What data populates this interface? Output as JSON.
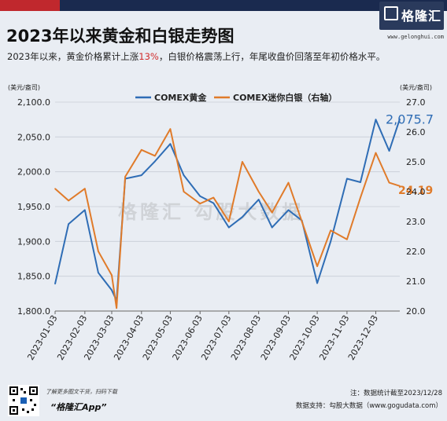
{
  "header": {
    "title": "2023年以来黄金和白银走势图",
    "subtitle_pre": "2023年以来，黄金价格累计上涨",
    "subtitle_highlight": "13%",
    "subtitle_post": "，白银价格震荡上行，年尾收盘价回落至年初价格水平。"
  },
  "brand": {
    "name": "格隆汇",
    "url": "www.gelonghui.com"
  },
  "watermark": "格隆汇  勾股大数据",
  "footer": {
    "promo_line": "了解更多图文干货，扫码下载",
    "app_name": "“格隆汇App”",
    "note": "注：数据统计截至2023/12/28",
    "source": "数据支持：勾股大数据（www.gogudata.com）"
  },
  "colors": {
    "gold": "#2f6db5",
    "silver": "#e07b2a",
    "red": "#c0282d",
    "navy": "#1a2a4f"
  },
  "chart_data": {
    "type": "line",
    "title": "",
    "left_unit": "(美元/盎司)",
    "right_unit": "(美元/盎司)",
    "x": [
      "2023-01-03",
      "2023-01-17",
      "2023-02-03",
      "2023-02-17",
      "2023-03-03",
      "2023-03-08",
      "2023-03-17",
      "2023-04-03",
      "2023-04-17",
      "2023-05-03",
      "2023-05-17",
      "2023-06-03",
      "2023-06-17",
      "2023-07-03",
      "2023-07-17",
      "2023-08-03",
      "2023-08-17",
      "2023-09-03",
      "2023-09-17",
      "2023-10-03",
      "2023-10-17",
      "2023-11-03",
      "2023-11-17",
      "2023-12-03",
      "2023-12-17",
      "2023-12-28"
    ],
    "x_tick_labels": [
      "2023-01-03",
      "2023-02-03",
      "2023-03-03",
      "2023-04-03",
      "2023-05-03",
      "2023-06-03",
      "2023-07-03",
      "2023-08-03",
      "2023-09-03",
      "2023-10-03",
      "2023-11-03",
      "2023-12-03"
    ],
    "ylim_left": [
      1800,
      2100
    ],
    "yticks_left": [
      "1,800.0",
      "1,850.0",
      "1,900.0",
      "1,950.0",
      "2,000.0",
      "2,050.0",
      "2,100.0"
    ],
    "ylim_right": [
      20,
      27
    ],
    "yticks_right": [
      "20.0",
      "21.0",
      "22.0",
      "23.0",
      "24.0",
      "25.0",
      "26.0",
      "27.0"
    ],
    "series": [
      {
        "name": "COMEX黄金",
        "axis": "left",
        "values": [
          1839,
          1925,
          1945,
          1855,
          1830,
          1815,
          1990,
          1995,
          2015,
          2040,
          1995,
          1965,
          1955,
          1920,
          1935,
          1960,
          1920,
          1945,
          1930,
          1840,
          1900,
          1990,
          1985,
          2075,
          2030,
          2075.7
        ]
      },
      {
        "name": "COMEX迷你白银（右轴）",
        "axis": "right",
        "values": [
          24.1,
          23.7,
          24.1,
          22.0,
          21.2,
          20.1,
          24.5,
          25.4,
          25.2,
          26.1,
          24.0,
          23.6,
          23.8,
          23.0,
          25.0,
          24.0,
          23.3,
          24.3,
          23.0,
          21.5,
          22.7,
          22.4,
          23.8,
          25.3,
          24.3,
          24.19
        ]
      }
    ],
    "last_labels": {
      "left": "2,075.7",
      "right": "24.19"
    },
    "grid": true,
    "legend": "top-center"
  }
}
